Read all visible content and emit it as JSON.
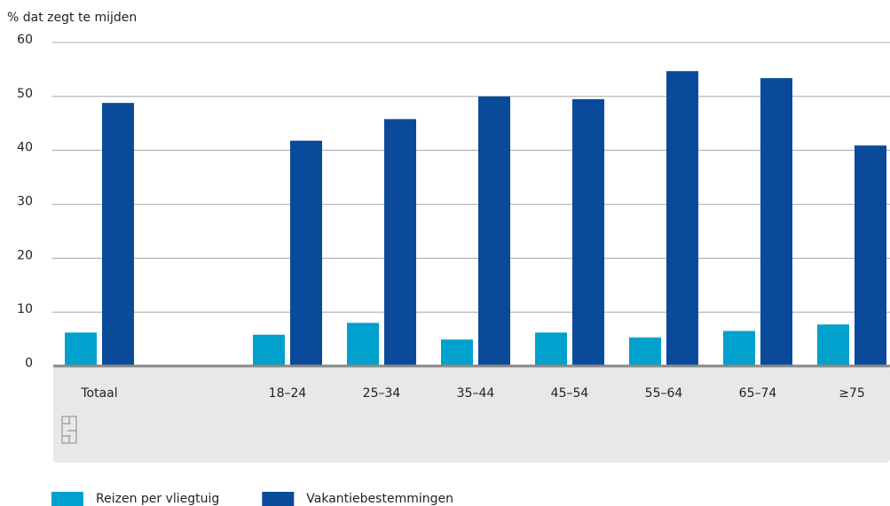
{
  "chart_data": {
    "type": "bar",
    "y_label": "% dat zegt te mijden",
    "categories": [
      "Totaal",
      null,
      "18–24",
      "25–34",
      "35–44",
      "45–54",
      "55–64",
      "65–74",
      "≥75"
    ],
    "series": [
      {
        "name": "Reizen per vliegtuig",
        "color": "#00a1cd",
        "values": [
          6.2,
          null,
          5.8,
          8.0,
          4.9,
          6.2,
          5.3,
          6.5,
          7.7
        ]
      },
      {
        "name": "Vakantiebestemmingen",
        "color": "#0a4a9a",
        "values": [
          48.8,
          null,
          41.8,
          45.8,
          50.0,
          49.5,
          54.7,
          53.4,
          40.9
        ]
      }
    ],
    "ylim": [
      0,
      60
    ],
    "yticks": [
      0,
      10,
      20,
      30,
      40,
      50,
      60
    ],
    "grid": true
  }
}
